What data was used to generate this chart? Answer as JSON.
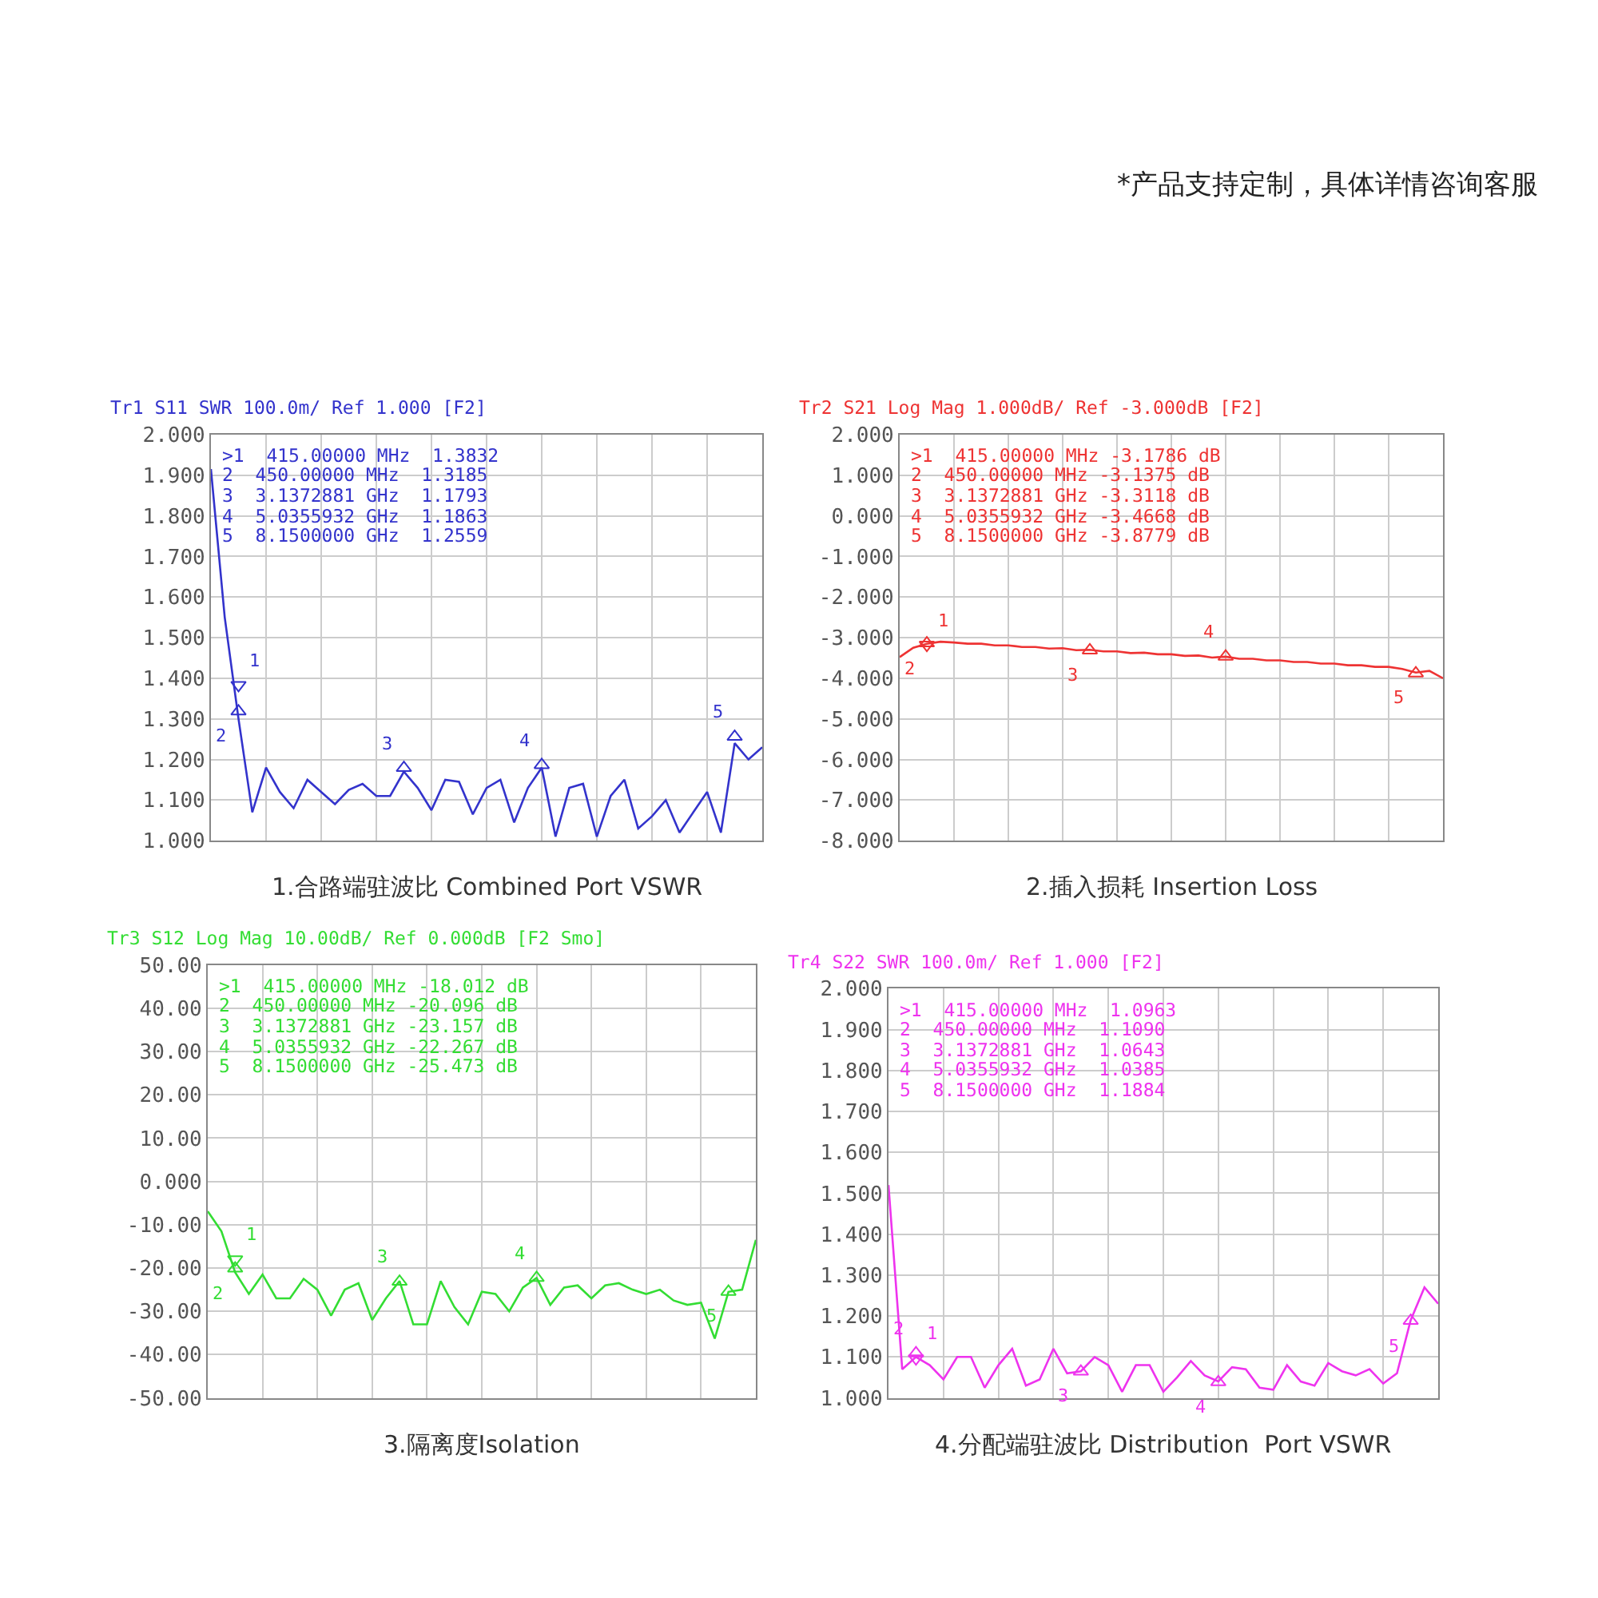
{
  "chart_data": [
    {
      "type": "line",
      "title": "Tr1 S11 SWR 100.0m/ Ref 1.000 [F2]",
      "xlabel": "1.合路端驻波比 Combined Port VSWR",
      "grid": true,
      "categories": [
        null,
        null,
        null,
        null,
        null,
        null,
        null,
        null,
        null,
        null,
        null,
        null,
        null,
        null,
        null,
        null,
        null,
        null,
        null,
        null,
        null,
        null,
        null,
        null,
        null,
        null,
        null,
        null,
        null,
        null,
        null,
        null,
        null,
        null,
        null,
        null,
        null,
        null,
        null,
        null,
        null
      ],
      "ylim": [
        1.0,
        2.0
      ],
      "yticks": [
        {
          "value": 1.0,
          "label": "1.000"
        },
        {
          "value": 1.1,
          "label": "1.100"
        },
        {
          "value": 1.2,
          "label": "1.200"
        },
        {
          "value": 1.3,
          "label": "1.300"
        },
        {
          "value": 1.4,
          "label": "1.400"
        },
        {
          "value": 1.5,
          "label": "1.500"
        },
        {
          "value": 1.6,
          "label": "1.600"
        },
        {
          "value": 1.7,
          "label": "1.700"
        },
        {
          "value": 1.8,
          "label": "1.800"
        },
        {
          "value": 1.9,
          "label": "1.900"
        },
        {
          "value": 2.0,
          "label": "2.000"
        }
      ],
      "series": [
        {
          "color": "#3333cc",
          "values": [
            1.915,
            1.55,
            1.3,
            1.07,
            1.18,
            1.12,
            1.08,
            1.15,
            1.12,
            1.09,
            1.125,
            1.14,
            1.11,
            1.11,
            1.17,
            1.13,
            1.075,
            1.15,
            1.145,
            1.065,
            1.13,
            1.15,
            1.045,
            1.13,
            1.18,
            1.01,
            1.13,
            1.14,
            1.01,
            1.11,
            1.15,
            1.03,
            1.06,
            1.1,
            1.02,
            1.07,
            1.12,
            1.02,
            1.24,
            1.2,
            1.23
          ]
        },
        {
          "type": "scatter",
          "name": "1",
          "color": "#3333cc",
          "marker": "triangle",
          "values": [
            null,
            null,
            1.3832,
            null,
            null,
            null,
            null,
            null,
            null,
            null,
            null,
            null,
            null,
            null,
            null,
            null,
            null,
            null,
            null,
            null,
            null,
            null,
            null,
            null,
            null,
            null,
            null,
            null,
            null,
            null,
            null,
            null,
            null,
            null,
            null,
            null,
            null,
            null,
            null,
            null,
            null
          ]
        },
        {
          "type": "scatter",
          "name": "2",
          "color": "#3333cc",
          "marker": "triangle",
          "values": [
            null,
            null,
            1.3185,
            null,
            null,
            null,
            null,
            null,
            null,
            null,
            null,
            null,
            null,
            null,
            null,
            null,
            null,
            null,
            null,
            null,
            null,
            null,
            null,
            null,
            null,
            null,
            null,
            null,
            null,
            null,
            null,
            null,
            null,
            null,
            null,
            null,
            null,
            null,
            null,
            null,
            null
          ]
        },
        {
          "type": "scatter",
          "name": "3",
          "color": "#3333cc",
          "marker": "triangle",
          "values": [
            null,
            null,
            null,
            null,
            null,
            null,
            null,
            null,
            null,
            null,
            null,
            null,
            null,
            null,
            1.1793,
            null,
            null,
            null,
            null,
            null,
            null,
            null,
            null,
            null,
            null,
            null,
            null,
            null,
            null,
            null,
            null,
            null,
            null,
            null,
            null,
            null,
            null,
            null,
            null,
            null,
            null
          ]
        },
        {
          "type": "scatter",
          "name": "4",
          "color": "#3333cc",
          "marker": "triangle",
          "values": [
            null,
            null,
            null,
            null,
            null,
            null,
            null,
            null,
            null,
            null,
            null,
            null,
            null,
            null,
            null,
            null,
            null,
            null,
            null,
            null,
            null,
            null,
            null,
            null,
            1.1863,
            null,
            null,
            null,
            null,
            null,
            null,
            null,
            null,
            null,
            null,
            null,
            null,
            null,
            null,
            null,
            null
          ]
        },
        {
          "type": "scatter",
          "name": "5",
          "color": "#3333cc",
          "marker": "triangle",
          "values": [
            null,
            null,
            null,
            null,
            null,
            null,
            null,
            null,
            null,
            null,
            null,
            null,
            null,
            null,
            null,
            null,
            null,
            null,
            null,
            null,
            null,
            null,
            null,
            null,
            null,
            null,
            null,
            null,
            null,
            null,
            null,
            null,
            null,
            null,
            null,
            null,
            null,
            null,
            1.2559,
            null,
            null
          ]
        }
      ],
      "annotations": [
        ">1  415.00000 MHz  1.3832",
        "2  450.00000 MHz  1.3185",
        "3  3.1372881 GHz  1.1793",
        "4  5.0355932 GHz  1.1863",
        "5  8.1500000 GHz  1.2559"
      ]
    },
    {
      "type": "line",
      "title": "Tr2 S21 Log Mag 1.000dB/ Ref -3.000dB [F2]",
      "xlabel": "2.插入损耗 Insertion Loss",
      "grid": true,
      "categories": [
        null,
        null,
        null,
        null,
        null,
        null,
        null,
        null,
        null,
        null,
        null,
        null,
        null,
        null,
        null,
        null,
        null,
        null,
        null,
        null,
        null,
        null,
        null,
        null,
        null,
        null,
        null,
        null,
        null,
        null,
        null,
        null,
        null,
        null,
        null,
        null,
        null,
        null,
        null,
        null,
        null
      ],
      "ylim": [
        -8.0,
        2.0
      ],
      "yticks": [
        {
          "value": -8,
          "label": "-8.000"
        },
        {
          "value": -7,
          "label": "-7.000"
        },
        {
          "value": -6,
          "label": "-6.000"
        },
        {
          "value": -5,
          "label": "-5.000"
        },
        {
          "value": -4,
          "label": "-4.000"
        },
        {
          "value": -3,
          "label": "-3.000"
        },
        {
          "value": -2,
          "label": "-2.000"
        },
        {
          "value": -1,
          "label": "-1.000"
        },
        {
          "value": 0,
          "label": "0.000"
        },
        {
          "value": 1,
          "label": "1.000"
        },
        {
          "value": 2,
          "label": "2.000"
        }
      ],
      "series": [
        {
          "color": "#ee3333",
          "values": [
            -3.48,
            -3.25,
            -3.15,
            -3.1,
            -3.12,
            -3.15,
            -3.15,
            -3.19,
            -3.19,
            -3.23,
            -3.23,
            -3.27,
            -3.26,
            -3.31,
            -3.3,
            -3.34,
            -3.34,
            -3.38,
            -3.37,
            -3.41,
            -3.41,
            -3.45,
            -3.44,
            -3.49,
            -3.47,
            -3.52,
            -3.52,
            -3.56,
            -3.56,
            -3.6,
            -3.6,
            -3.64,
            -3.64,
            -3.68,
            -3.68,
            -3.72,
            -3.72,
            -3.77,
            -3.86,
            -3.82,
            -4.0
          ]
        },
        {
          "type": "scatter",
          "name": "1",
          "color": "#ee3333",
          "marker": "triangle",
          "values": [
            null,
            null,
            -3.1786,
            null,
            null,
            null,
            null,
            null,
            null,
            null,
            null,
            null,
            null,
            null,
            null,
            null,
            null,
            null,
            null,
            null,
            null,
            null,
            null,
            null,
            null,
            null,
            null,
            null,
            null,
            null,
            null,
            null,
            null,
            null,
            null,
            null,
            null,
            null,
            null,
            null,
            null
          ]
        },
        {
          "type": "scatter",
          "name": "2",
          "color": "#ee3333",
          "marker": "triangle",
          "values": [
            null,
            null,
            -3.1375,
            null,
            null,
            null,
            null,
            null,
            null,
            null,
            null,
            null,
            null,
            null,
            null,
            null,
            null,
            null,
            null,
            null,
            null,
            null,
            null,
            null,
            null,
            null,
            null,
            null,
            null,
            null,
            null,
            null,
            null,
            null,
            null,
            null,
            null,
            null,
            null,
            null,
            null
          ]
        },
        {
          "type": "scatter",
          "name": "3",
          "color": "#ee3333",
          "marker": "triangle",
          "values": [
            null,
            null,
            null,
            null,
            null,
            null,
            null,
            null,
            null,
            null,
            null,
            null,
            null,
            null,
            -3.3118,
            null,
            null,
            null,
            null,
            null,
            null,
            null,
            null,
            null,
            null,
            null,
            null,
            null,
            null,
            null,
            null,
            null,
            null,
            null,
            null,
            null,
            null,
            null,
            null,
            null,
            null
          ]
        },
        {
          "type": "scatter",
          "name": "4",
          "color": "#ee3333",
          "marker": "triangle",
          "values": [
            null,
            null,
            null,
            null,
            null,
            null,
            null,
            null,
            null,
            null,
            null,
            null,
            null,
            null,
            null,
            null,
            null,
            null,
            null,
            null,
            null,
            null,
            null,
            null,
            -3.4668,
            null,
            null,
            null,
            null,
            null,
            null,
            null,
            null,
            null,
            null,
            null,
            null,
            null,
            null,
            null,
            null
          ]
        },
        {
          "type": "scatter",
          "name": "5",
          "color": "#ee3333",
          "marker": "triangle",
          "values": [
            null,
            null,
            null,
            null,
            null,
            null,
            null,
            null,
            null,
            null,
            null,
            null,
            null,
            null,
            null,
            null,
            null,
            null,
            null,
            null,
            null,
            null,
            null,
            null,
            null,
            null,
            null,
            null,
            null,
            null,
            null,
            null,
            null,
            null,
            null,
            null,
            null,
            null,
            -3.8779,
            null,
            null
          ]
        }
      ],
      "annotations": [
        ">1  415.00000 MHz -3.1786 dB",
        "2  450.00000 MHz -3.1375 dB",
        "3  3.1372881 GHz -3.3118 dB",
        "4  5.0355932 GHz -3.4668 dB",
        "5  8.1500000 GHz -3.8779 dB"
      ]
    },
    {
      "type": "line",
      "title": "Tr3 S12 Log Mag 10.00dB/ Ref 0.000dB [F2 Smo]",
      "xlabel": "3.隔离度Isolation",
      "grid": true,
      "categories": [
        null,
        null,
        null,
        null,
        null,
        null,
        null,
        null,
        null,
        null,
        null,
        null,
        null,
        null,
        null,
        null,
        null,
        null,
        null,
        null,
        null,
        null,
        null,
        null,
        null,
        null,
        null,
        null,
        null,
        null,
        null,
        null,
        null,
        null,
        null,
        null,
        null,
        null,
        null,
        null,
        null
      ],
      "ylim": [
        -50,
        50
      ],
      "yticks": [
        {
          "value": -50,
          "label": "-50.00"
        },
        {
          "value": -40,
          "label": "-40.00"
        },
        {
          "value": -30,
          "label": "-30.00"
        },
        {
          "value": -20,
          "label": "-20.00"
        },
        {
          "value": -10,
          "label": "-10.00"
        },
        {
          "value": 0,
          "label": "0.000"
        },
        {
          "value": 10,
          "label": "10.00"
        },
        {
          "value": 20,
          "label": "20.00"
        },
        {
          "value": 30,
          "label": "30.00"
        },
        {
          "value": 40,
          "label": "40.00"
        },
        {
          "value": 50,
          "label": "50.00"
        }
      ],
      "series": [
        {
          "color": "#33dd33",
          "values": [
            -6.9,
            -11.5,
            -21,
            -26,
            -21.5,
            -27,
            -27,
            -22.5,
            -25,
            -31,
            -25,
            -23.5,
            -32,
            -27,
            -23,
            -33,
            -33,
            -23,
            -29,
            -33,
            -25.5,
            -26,
            -30,
            -24.5,
            -22.3,
            -28.5,
            -24.5,
            -24,
            -27,
            -24,
            -23.5,
            -25,
            -26,
            -25,
            -27.5,
            -28.5,
            -28,
            -36.3,
            -25.5,
            -25,
            -13.5
          ]
        },
        {
          "type": "scatter",
          "name": "1",
          "color": "#33dd33",
          "marker": "triangle",
          "values": [
            null,
            null,
            -18.012,
            null,
            null,
            null,
            null,
            null,
            null,
            null,
            null,
            null,
            null,
            null,
            null,
            null,
            null,
            null,
            null,
            null,
            null,
            null,
            null,
            null,
            null,
            null,
            null,
            null,
            null,
            null,
            null,
            null,
            null,
            null,
            null,
            null,
            null,
            null,
            null,
            null,
            null
          ]
        },
        {
          "type": "scatter",
          "name": "2",
          "color": "#33dd33",
          "marker": "triangle",
          "values": [
            null,
            null,
            -20.096,
            null,
            null,
            null,
            null,
            null,
            null,
            null,
            null,
            null,
            null,
            null,
            null,
            null,
            null,
            null,
            null,
            null,
            null,
            null,
            null,
            null,
            null,
            null,
            null,
            null,
            null,
            null,
            null,
            null,
            null,
            null,
            null,
            null,
            null,
            null,
            null,
            null,
            null
          ]
        },
        {
          "type": "scatter",
          "name": "3",
          "color": "#33dd33",
          "marker": "triangle",
          "values": [
            null,
            null,
            null,
            null,
            null,
            null,
            null,
            null,
            null,
            null,
            null,
            null,
            null,
            null,
            -23.157,
            null,
            null,
            null,
            null,
            null,
            null,
            null,
            null,
            null,
            null,
            null,
            null,
            null,
            null,
            null,
            null,
            null,
            null,
            null,
            null,
            null,
            null,
            null,
            null,
            null,
            null
          ]
        },
        {
          "type": "scatter",
          "name": "4",
          "color": "#33dd33",
          "marker": "triangle",
          "values": [
            null,
            null,
            null,
            null,
            null,
            null,
            null,
            null,
            null,
            null,
            null,
            null,
            null,
            null,
            null,
            null,
            null,
            null,
            null,
            null,
            null,
            null,
            null,
            null,
            -22.267,
            null,
            null,
            null,
            null,
            null,
            null,
            null,
            null,
            null,
            null,
            null,
            null,
            null,
            null,
            null,
            null
          ]
        },
        {
          "type": "scatter",
          "name": "5",
          "color": "#33dd33",
          "marker": "triangle",
          "values": [
            null,
            null,
            null,
            null,
            null,
            null,
            null,
            null,
            null,
            null,
            null,
            null,
            null,
            null,
            null,
            null,
            null,
            null,
            null,
            null,
            null,
            null,
            null,
            null,
            null,
            null,
            null,
            null,
            null,
            null,
            null,
            null,
            null,
            null,
            null,
            null,
            null,
            null,
            -25.473,
            null,
            null
          ]
        }
      ],
      "annotations": [
        ">1  415.00000 MHz -18.012 dB",
        "2  450.00000 MHz -20.096 dB",
        "3  3.1372881 GHz -23.157 dB",
        "4  5.0355932 GHz -22.267 dB",
        "5  8.1500000 GHz -25.473 dB"
      ]
    },
    {
      "type": "line",
      "title": "Tr4 S22 SWR 100.0m/ Ref 1.000 [F2]",
      "xlabel": "4.分配端驻波比 Distribution  Port VSWR",
      "grid": true,
      "categories": [
        null,
        null,
        null,
        null,
        null,
        null,
        null,
        null,
        null,
        null,
        null,
        null,
        null,
        null,
        null,
        null,
        null,
        null,
        null,
        null,
        null,
        null,
        null,
        null,
        null,
        null,
        null,
        null,
        null,
        null,
        null,
        null,
        null,
        null,
        null,
        null,
        null,
        null,
        null,
        null,
        null
      ],
      "ylim": [
        1.0,
        2.0
      ],
      "yticks": [
        {
          "value": 1.0,
          "label": "1.000"
        },
        {
          "value": 1.1,
          "label": "1.100"
        },
        {
          "value": 1.2,
          "label": "1.200"
        },
        {
          "value": 1.3,
          "label": "1.300"
        },
        {
          "value": 1.4,
          "label": "1.400"
        },
        {
          "value": 1.5,
          "label": "1.500"
        },
        {
          "value": 1.6,
          "label": "1.600"
        },
        {
          "value": 1.7,
          "label": "1.700"
        },
        {
          "value": 1.8,
          "label": "1.800"
        },
        {
          "value": 1.9,
          "label": "1.900"
        },
        {
          "value": 2.0,
          "label": "2.000"
        }
      ],
      "series": [
        {
          "color": "#ee33ee",
          "values": [
            1.52,
            1.07,
            1.1,
            1.08,
            1.045,
            1.1,
            1.1,
            1.025,
            1.08,
            1.12,
            1.03,
            1.045,
            1.12,
            1.06,
            1.065,
            1.1,
            1.08,
            1.015,
            1.08,
            1.08,
            1.015,
            1.05,
            1.09,
            1.055,
            1.04,
            1.075,
            1.07,
            1.025,
            1.02,
            1.08,
            1.04,
            1.03,
            1.085,
            1.065,
            1.055,
            1.07,
            1.035,
            1.06,
            1.19,
            1.27,
            1.23
          ]
        },
        {
          "type": "scatter",
          "name": "1",
          "color": "#ee33ee",
          "marker": "triangle",
          "values": [
            null,
            null,
            1.0963,
            null,
            null,
            null,
            null,
            null,
            null,
            null,
            null,
            null,
            null,
            null,
            null,
            null,
            null,
            null,
            null,
            null,
            null,
            null,
            null,
            null,
            null,
            null,
            null,
            null,
            null,
            null,
            null,
            null,
            null,
            null,
            null,
            null,
            null,
            null,
            null,
            null,
            null
          ]
        },
        {
          "type": "scatter",
          "name": "2",
          "color": "#ee33ee",
          "marker": "triangle",
          "values": [
            null,
            null,
            1.109,
            null,
            null,
            null,
            null,
            null,
            null,
            null,
            null,
            null,
            null,
            null,
            null,
            null,
            null,
            null,
            null,
            null,
            null,
            null,
            null,
            null,
            null,
            null,
            null,
            null,
            null,
            null,
            null,
            null,
            null,
            null,
            null,
            null,
            null,
            null,
            null,
            null,
            null
          ]
        },
        {
          "type": "scatter",
          "name": "3",
          "color": "#ee33ee",
          "marker": "triangle",
          "values": [
            null,
            null,
            null,
            null,
            null,
            null,
            null,
            null,
            null,
            null,
            null,
            null,
            null,
            null,
            1.0643,
            null,
            null,
            null,
            null,
            null,
            null,
            null,
            null,
            null,
            null,
            null,
            null,
            null,
            null,
            null,
            null,
            null,
            null,
            null,
            null,
            null,
            null,
            null,
            null,
            null,
            null
          ]
        },
        {
          "type": "scatter",
          "name": "4",
          "color": "#ee33ee",
          "marker": "triangle",
          "values": [
            null,
            null,
            null,
            null,
            null,
            null,
            null,
            null,
            null,
            null,
            null,
            null,
            null,
            null,
            null,
            null,
            null,
            null,
            null,
            null,
            null,
            null,
            null,
            null,
            1.0385,
            null,
            null,
            null,
            null,
            null,
            null,
            null,
            null,
            null,
            null,
            null,
            null,
            null,
            null,
            null,
            null
          ]
        },
        {
          "type": "scatter",
          "name": "5",
          "color": "#ee33ee",
          "marker": "triangle",
          "values": [
            null,
            null,
            null,
            null,
            null,
            null,
            null,
            null,
            null,
            null,
            null,
            null,
            null,
            null,
            null,
            null,
            null,
            null,
            null,
            null,
            null,
            null,
            null,
            null,
            null,
            null,
            null,
            null,
            null,
            null,
            null,
            null,
            null,
            null,
            null,
            null,
            null,
            null,
            1.1884,
            null,
            null
          ]
        }
      ],
      "annotations": [
        ">1  415.00000 MHz  1.0963",
        "2  450.00000 MHz  1.1090",
        "3  3.1372881 GHz  1.0643",
        "4  5.0355932 GHz  1.0385",
        "5  8.1500000 GHz  1.1884"
      ]
    },
    {
      "type": "other",
      "annotations": [
        "*产品支持定制，具体详情咨询客服"
      ]
    }
  ]
}
